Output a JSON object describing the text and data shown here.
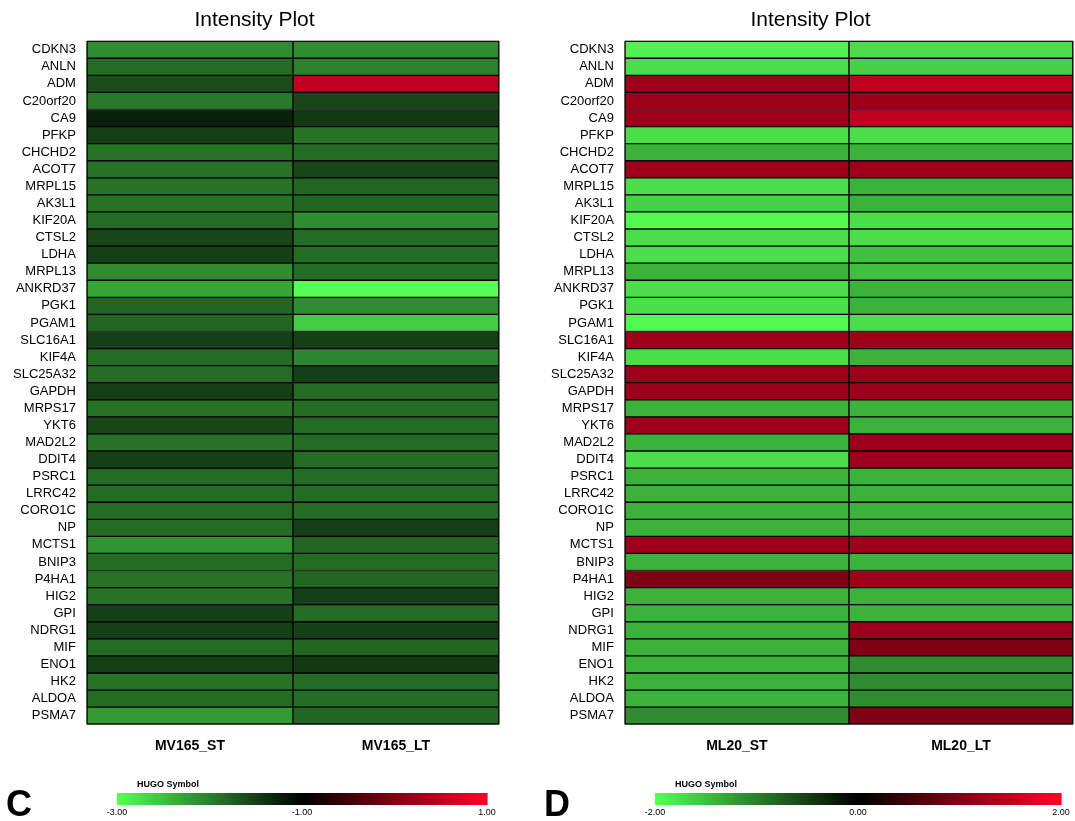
{
  "chart_data": [
    {
      "type": "heatmap",
      "title": "Intensity Plot",
      "xlabel": "HUGO Symbol",
      "annotations": [
        "C"
      ],
      "categories": [
        "MV165_ST",
        "MV165_LT"
      ],
      "y_categories": [
        "CDKN3",
        "ANLN",
        "ADM",
        "C20orf20",
        "CA9",
        "PFKP",
        "CHCHD2",
        "ACOT7",
        "MRPL15",
        "AK3L1",
        "KIF20A",
        "CTSL2",
        "LDHA",
        "MRPL13",
        "ANKRD37",
        "PGK1",
        "PGAM1",
        "SLC16A1",
        "KIF4A",
        "SLC25A32",
        "GAPDH",
        "MRPS17",
        "YKT6",
        "MAD2L2",
        "DDIT4",
        "PSRC1",
        "LRRC42",
        "CORO1C",
        "NP",
        "MCTS1",
        "BNIP3",
        "P4HA1",
        "HIG2",
        "GPI",
        "NDRG1",
        "MIF",
        "ENO1",
        "HK2",
        "ALDOA",
        "PSMA7"
      ],
      "cells": [
        [
          -2.1,
          -2.1
        ],
        [
          -1.85,
          -2.0
        ],
        [
          -1.6,
          0.5
        ],
        [
          -1.95,
          -1.55
        ],
        [
          -1.25,
          -1.45
        ],
        [
          -1.5,
          -1.9
        ],
        [
          -1.9,
          -1.85
        ],
        [
          -1.9,
          -1.55
        ],
        [
          -1.9,
          -1.8
        ],
        [
          -1.9,
          -1.8
        ],
        [
          -1.85,
          -2.1
        ],
        [
          -1.55,
          -1.85
        ],
        [
          -1.5,
          -1.85
        ],
        [
          -2.1,
          -1.85
        ],
        [
          -2.3,
          -3.0
        ],
        [
          -1.8,
          -2.1
        ],
        [
          -1.8,
          -2.6
        ],
        [
          -1.5,
          -1.5
        ],
        [
          -1.85,
          -2.05
        ],
        [
          -1.85,
          -1.5
        ],
        [
          -1.5,
          -1.85
        ],
        [
          -1.9,
          -1.85
        ],
        [
          -1.55,
          -1.85
        ],
        [
          -1.9,
          -1.85
        ],
        [
          -1.5,
          -1.85
        ],
        [
          -1.85,
          -1.85
        ],
        [
          -1.85,
          -1.85
        ],
        [
          -1.85,
          -1.85
        ],
        [
          -1.85,
          -1.5
        ],
        [
          -2.15,
          -1.8
        ],
        [
          -1.85,
          -1.85
        ],
        [
          -1.9,
          -1.8
        ],
        [
          -1.9,
          -1.5
        ],
        [
          -1.5,
          -1.85
        ],
        [
          -1.5,
          -1.5
        ],
        [
          -1.85,
          -1.8
        ],
        [
          -1.5,
          -1.45
        ],
        [
          -1.9,
          -1.85
        ],
        [
          -1.85,
          -1.85
        ],
        [
          -2.2,
          -1.8
        ]
      ],
      "clim": [
        -3,
        1
      ],
      "cticks": [
        {
          "value": -3,
          "label": "-3.00"
        },
        {
          "value": -1,
          "label": "-1.00"
        },
        {
          "value": 1,
          "label": "1.00"
        }
      ]
    },
    {
      "type": "heatmap",
      "title": "Intensity Plot",
      "xlabel": "HUGO Symbol",
      "annotations": [
        "D"
      ],
      "categories": [
        "ML20_ST",
        "ML20_LT"
      ],
      "y_categories": [
        "CDKN3",
        "ANLN",
        "ADM",
        "C20orf20",
        "CA9",
        "PFKP",
        "CHCHD2",
        "ACOT7",
        "MRPL15",
        "AK3L1",
        "KIF20A",
        "CTSL2",
        "LDHA",
        "MRPL13",
        "ANKRD37",
        "PGK1",
        "PGAM1",
        "SLC16A1",
        "KIF4A",
        "SLC25A32",
        "GAPDH",
        "MRPS17",
        "YKT6",
        "MAD2L2",
        "DDIT4",
        "PSRC1",
        "LRRC42",
        "CORO1C",
        "NP",
        "MCTS1",
        "BNIP3",
        "P4HA1",
        "HIG2",
        "GPI",
        "NDRG1",
        "MIF",
        "ENO1",
        "HK2",
        "ALDOA",
        "PSMA7"
      ],
      "cells": [
        [
          -1.9,
          -1.75
        ],
        [
          -1.75,
          -1.65
        ],
        [
          1.25,
          1.5
        ],
        [
          1.25,
          1.25
        ],
        [
          1.25,
          1.5
        ],
        [
          -1.75,
          -1.75
        ],
        [
          -1.4,
          -1.4
        ],
        [
          1.25,
          1.25
        ],
        [
          -1.75,
          -1.4
        ],
        [
          -1.65,
          -1.4
        ],
        [
          -1.95,
          -1.75
        ],
        [
          -1.75,
          -1.75
        ],
        [
          -1.75,
          -1.5
        ],
        [
          -1.4,
          -1.5
        ],
        [
          -1.75,
          -1.4
        ],
        [
          -1.75,
          -1.4
        ],
        [
          -1.95,
          -1.75
        ],
        [
          1.25,
          1.25
        ],
        [
          -1.75,
          -1.4
        ],
        [
          1.25,
          1.25
        ],
        [
          1.25,
          1.25
        ],
        [
          -1.4,
          -1.4
        ],
        [
          1.25,
          -1.4
        ],
        [
          -1.4,
          1.25
        ],
        [
          -1.75,
          1.25
        ],
        [
          -1.4,
          -1.4
        ],
        [
          -1.4,
          -1.4
        ],
        [
          -1.4,
          -1.4
        ],
        [
          -1.4,
          -1.4
        ],
        [
          1.25,
          1.25
        ],
        [
          -1.4,
          -1.4
        ],
        [
          1.0,
          1.25
        ],
        [
          -1.4,
          -1.4
        ],
        [
          -1.4,
          -1.4
        ],
        [
          -1.4,
          1.25
        ],
        [
          -1.4,
          1.0
        ],
        [
          -1.4,
          -1.1
        ],
        [
          -1.4,
          -1.1
        ],
        [
          -1.4,
          -1.1
        ],
        [
          -1.1,
          1.0
        ]
      ],
      "clim": [
        -2,
        2
      ],
      "cticks": [
        {
          "value": -2,
          "label": "-2.00"
        },
        {
          "value": 0,
          "label": "0.00"
        },
        {
          "value": 2,
          "label": "2.00"
        }
      ]
    }
  ]
}
